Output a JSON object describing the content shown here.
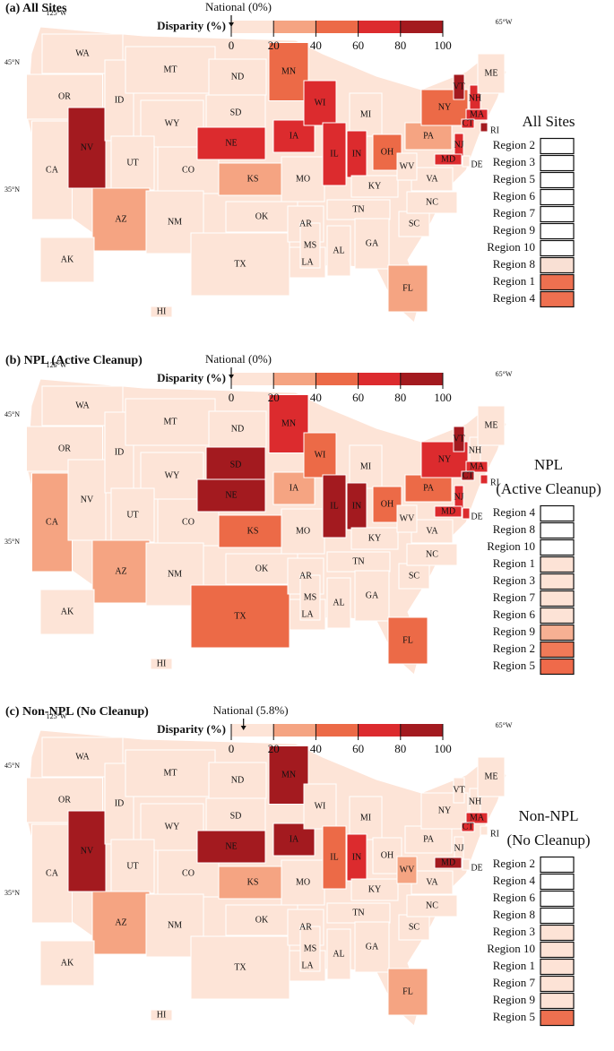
{
  "panels": [
    {
      "title": "(a) All Sites",
      "national": {
        "label": "National (0%)",
        "value": 0
      },
      "colorbar": {
        "title": "Disparity (%)",
        "range": [
          0,
          100
        ],
        "ticks": [
          0,
          20,
          40,
          60,
          80,
          100
        ],
        "colors": [
          "#fde4d7",
          "#f5a482",
          "#ec6a47",
          "#dc2b2e",
          "#a31a1f"
        ]
      },
      "graticule": [
        "125°W",
        "65°W",
        "45°N",
        "35°N"
      ],
      "legend_title": [
        "All Sites"
      ],
      "legend": [
        {
          "label": "Region 2",
          "color": "#ffffff"
        },
        {
          "label": "Region 3",
          "color": "#ffffff"
        },
        {
          "label": "Region 5",
          "color": "#ffffff"
        },
        {
          "label": "Region 6",
          "color": "#ffffff"
        },
        {
          "label": "Region 7",
          "color": "#ffffff"
        },
        {
          "label": "Region 9",
          "color": "#ffffff"
        },
        {
          "label": "Region 10",
          "color": "#ffffff"
        },
        {
          "label": "Region 8",
          "color": "#f9e0d4"
        },
        {
          "label": "Region 1",
          "color": "#ee7050"
        },
        {
          "label": "Region 4",
          "color": "#ee7050"
        }
      ],
      "states": [
        {
          "label": "WA",
          "color": "#fde4d7"
        },
        {
          "label": "OR",
          "color": "#fde4d7"
        },
        {
          "label": "CA",
          "color": "#fde4d7"
        },
        {
          "label": "NV",
          "color": "#a31a1f"
        },
        {
          "label": "ID",
          "color": "#fde4d7"
        },
        {
          "label": "MT",
          "color": "#fde4d7"
        },
        {
          "label": "WY",
          "color": "#fde4d7"
        },
        {
          "label": "UT",
          "color": "#fde4d7"
        },
        {
          "label": "CO",
          "color": "#fde4d7"
        },
        {
          "label": "AZ",
          "color": "#f5a482"
        },
        {
          "label": "NM",
          "color": "#fde4d7"
        },
        {
          "label": "ND",
          "color": "#fde4d7"
        },
        {
          "label": "SD",
          "color": "#fde4d7"
        },
        {
          "label": "NE",
          "color": "#dc2b2e"
        },
        {
          "label": "KS",
          "color": "#f5a482"
        },
        {
          "label": "OK",
          "color": "#fde4d7"
        },
        {
          "label": "TX",
          "color": "#fde4d7"
        },
        {
          "label": "MN",
          "color": "#ec6a47"
        },
        {
          "label": "IA",
          "color": "#dc2b2e"
        },
        {
          "label": "MO",
          "color": "#fde4d7"
        },
        {
          "label": "AR",
          "color": "#fde4d7"
        },
        {
          "label": "LA",
          "color": "#fde4d7"
        },
        {
          "label": "WI",
          "color": "#dc2b2e"
        },
        {
          "label": "IL",
          "color": "#dc2b2e"
        },
        {
          "label": "MI",
          "color": "#fde4d7"
        },
        {
          "label": "IN",
          "color": "#dc2b2e"
        },
        {
          "label": "OH",
          "color": "#ec6a47"
        },
        {
          "label": "KY",
          "color": "#fde4d7"
        },
        {
          "label": "TN",
          "color": "#fde4d7"
        },
        {
          "label": "MS",
          "color": "#fde4d7"
        },
        {
          "label": "AL",
          "color": "#fde4d7"
        },
        {
          "label": "GA",
          "color": "#fde4d7"
        },
        {
          "label": "FL",
          "color": "#f5a482"
        },
        {
          "label": "SC",
          "color": "#fde4d7"
        },
        {
          "label": "NC",
          "color": "#fde4d7"
        },
        {
          "label": "VA",
          "color": "#fde4d7"
        },
        {
          "label": "WV",
          "color": "#fde4d7"
        },
        {
          "label": "PA",
          "color": "#f5a482"
        },
        {
          "label": "NY",
          "color": "#ec6a47"
        },
        {
          "label": "VT",
          "color": "#a31a1f"
        },
        {
          "label": "NH",
          "color": "#dc2b2e"
        },
        {
          "label": "ME",
          "color": "#fde4d7"
        },
        {
          "label": "MA",
          "color": "#dc2b2e"
        },
        {
          "label": "CT",
          "color": "#dc2b2e"
        },
        {
          "label": "RI",
          "color": "#a31a1f"
        },
        {
          "label": "NJ",
          "color": "#dc2b2e"
        },
        {
          "label": "DE",
          "color": "#fde4d7"
        },
        {
          "label": "MD",
          "color": "#dc2b2e"
        },
        {
          "label": "AK",
          "color": "#fde4d7"
        },
        {
          "label": "HI",
          "color": "#fde4d7"
        }
      ]
    },
    {
      "title": "(b) NPL (Active Cleanup)",
      "national": {
        "label": "National (0%)",
        "value": 0
      },
      "colorbar": {
        "title": "Disparity (%)",
        "range": [
          0,
          100
        ],
        "ticks": [
          0,
          20,
          40,
          60,
          80,
          100
        ],
        "colors": [
          "#fde4d7",
          "#f5a482",
          "#ec6a47",
          "#dc2b2e",
          "#a31a1f"
        ]
      },
      "graticule": [
        "125°W",
        "65°W",
        "45°N",
        "35°N"
      ],
      "legend_title": [
        "NPL",
        "(Active Cleanup)"
      ],
      "legend": [
        {
          "label": "Region 4",
          "color": "#ffffff"
        },
        {
          "label": "Region 8",
          "color": "#ffffff"
        },
        {
          "label": "Region 10",
          "color": "#ffffff"
        },
        {
          "label": "Region 1",
          "color": "#fde3d6"
        },
        {
          "label": "Region 3",
          "color": "#fde3d6"
        },
        {
          "label": "Region 7",
          "color": "#fde3d6"
        },
        {
          "label": "Region 6",
          "color": "#fde3d6"
        },
        {
          "label": "Region 9",
          "color": "#f6b093"
        },
        {
          "label": "Region 2",
          "color": "#f07a58"
        },
        {
          "label": "Region 5",
          "color": "#ef6a4a"
        }
      ],
      "states": [
        {
          "label": "WA",
          "color": "#fde4d7"
        },
        {
          "label": "OR",
          "color": "#fde4d7"
        },
        {
          "label": "CA",
          "color": "#f5a482"
        },
        {
          "label": "NV",
          "color": "#fde4d7"
        },
        {
          "label": "ID",
          "color": "#fde4d7"
        },
        {
          "label": "MT",
          "color": "#fde4d7"
        },
        {
          "label": "WY",
          "color": "#fde4d7"
        },
        {
          "label": "UT",
          "color": "#fde4d7"
        },
        {
          "label": "CO",
          "color": "#fde4d7"
        },
        {
          "label": "AZ",
          "color": "#f5a482"
        },
        {
          "label": "NM",
          "color": "#fde4d7"
        },
        {
          "label": "ND",
          "color": "#fde4d7"
        },
        {
          "label": "SD",
          "color": "#a31a1f"
        },
        {
          "label": "NE",
          "color": "#a31a1f"
        },
        {
          "label": "KS",
          "color": "#ec6a47"
        },
        {
          "label": "OK",
          "color": "#fde4d7"
        },
        {
          "label": "TX",
          "color": "#ec6a47"
        },
        {
          "label": "MN",
          "color": "#dc2b2e"
        },
        {
          "label": "IA",
          "color": "#f5a482"
        },
        {
          "label": "MO",
          "color": "#fde4d7"
        },
        {
          "label": "AR",
          "color": "#fde4d7"
        },
        {
          "label": "LA",
          "color": "#fde4d7"
        },
        {
          "label": "WI",
          "color": "#ec6a47"
        },
        {
          "label": "IL",
          "color": "#a31a1f"
        },
        {
          "label": "MI",
          "color": "#fde4d7"
        },
        {
          "label": "IN",
          "color": "#a31a1f"
        },
        {
          "label": "OH",
          "color": "#ec6a47"
        },
        {
          "label": "KY",
          "color": "#fde4d7"
        },
        {
          "label": "TN",
          "color": "#fde4d7"
        },
        {
          "label": "MS",
          "color": "#fde4d7"
        },
        {
          "label": "AL",
          "color": "#fde4d7"
        },
        {
          "label": "GA",
          "color": "#fde4d7"
        },
        {
          "label": "FL",
          "color": "#ec6a47"
        },
        {
          "label": "SC",
          "color": "#fde4d7"
        },
        {
          "label": "NC",
          "color": "#fde4d7"
        },
        {
          "label": "VA",
          "color": "#fde4d7"
        },
        {
          "label": "WV",
          "color": "#fde4d7"
        },
        {
          "label": "PA",
          "color": "#ec6a47"
        },
        {
          "label": "NY",
          "color": "#dc2b2e"
        },
        {
          "label": "VT",
          "color": "#a31a1f"
        },
        {
          "label": "NH",
          "color": "#fde4d7"
        },
        {
          "label": "ME",
          "color": "#fde4d7"
        },
        {
          "label": "MA",
          "color": "#dc2b2e"
        },
        {
          "label": "CT",
          "color": "#a31a1f"
        },
        {
          "label": "RI",
          "color": "#dc2b2e"
        },
        {
          "label": "NJ",
          "color": "#dc2b2e"
        },
        {
          "label": "DE",
          "color": "#dc2b2e"
        },
        {
          "label": "MD",
          "color": "#dc2b2e"
        },
        {
          "label": "AK",
          "color": "#fde4d7"
        },
        {
          "label": "HI",
          "color": "#fde4d7"
        }
      ]
    },
    {
      "title": "(c) Non-NPL (No Cleanup)",
      "national": {
        "label": "National (5.8%)",
        "value": 5.8
      },
      "colorbar": {
        "title": "Disparity (%)",
        "range": [
          0,
          100
        ],
        "ticks": [
          0,
          20,
          40,
          60,
          80,
          100
        ],
        "colors": [
          "#fde4d7",
          "#f5a482",
          "#ec6a47",
          "#dc2b2e",
          "#a31a1f"
        ]
      },
      "graticule": [
        "125°W",
        "65°W",
        "45°N",
        "35°N"
      ],
      "legend_title": [
        "Non-NPL",
        "(No Cleanup)"
      ],
      "legend": [
        {
          "label": "Region 2",
          "color": "#ffffff"
        },
        {
          "label": "Region 4",
          "color": "#ffffff"
        },
        {
          "label": "Region 6",
          "color": "#ffffff"
        },
        {
          "label": "Region 8",
          "color": "#ffffff"
        },
        {
          "label": "Region 3",
          "color": "#fde3d6"
        },
        {
          "label": "Region 10",
          "color": "#fde3d6"
        },
        {
          "label": "Region 1",
          "color": "#fde3d6"
        },
        {
          "label": "Region 7",
          "color": "#fde3d6"
        },
        {
          "label": "Region 9",
          "color": "#fde3d6"
        },
        {
          "label": "Region 5",
          "color": "#ee7050"
        }
      ],
      "states": [
        {
          "label": "WA",
          "color": "#fde4d7"
        },
        {
          "label": "OR",
          "color": "#fde4d7"
        },
        {
          "label": "CA",
          "color": "#fde4d7"
        },
        {
          "label": "NV",
          "color": "#a31a1f"
        },
        {
          "label": "ID",
          "color": "#fde4d7"
        },
        {
          "label": "MT",
          "color": "#fde4d7"
        },
        {
          "label": "WY",
          "color": "#fde4d7"
        },
        {
          "label": "UT",
          "color": "#fde4d7"
        },
        {
          "label": "CO",
          "color": "#fde4d7"
        },
        {
          "label": "AZ",
          "color": "#f5a482"
        },
        {
          "label": "NM",
          "color": "#fde4d7"
        },
        {
          "label": "ND",
          "color": "#fde4d7"
        },
        {
          "label": "SD",
          "color": "#fde4d7"
        },
        {
          "label": "NE",
          "color": "#a31a1f"
        },
        {
          "label": "KS",
          "color": "#f5a482"
        },
        {
          "label": "OK",
          "color": "#fde4d7"
        },
        {
          "label": "TX",
          "color": "#fde4d7"
        },
        {
          "label": "MN",
          "color": "#a31a1f"
        },
        {
          "label": "IA",
          "color": "#a31a1f"
        },
        {
          "label": "MO",
          "color": "#fde4d7"
        },
        {
          "label": "AR",
          "color": "#fde4d7"
        },
        {
          "label": "LA",
          "color": "#fde4d7"
        },
        {
          "label": "WI",
          "color": "#fde4d7"
        },
        {
          "label": "IL",
          "color": "#ec6a47"
        },
        {
          "label": "MI",
          "color": "#fde4d7"
        },
        {
          "label": "IN",
          "color": "#dc2b2e"
        },
        {
          "label": "OH",
          "color": "#fde4d7"
        },
        {
          "label": "KY",
          "color": "#fde4d7"
        },
        {
          "label": "TN",
          "color": "#fde4d7"
        },
        {
          "label": "MS",
          "color": "#fde4d7"
        },
        {
          "label": "AL",
          "color": "#fde4d7"
        },
        {
          "label": "GA",
          "color": "#fde4d7"
        },
        {
          "label": "FL",
          "color": "#f5a482"
        },
        {
          "label": "SC",
          "color": "#fde4d7"
        },
        {
          "label": "NC",
          "color": "#fde4d7"
        },
        {
          "label": "VA",
          "color": "#fde4d7"
        },
        {
          "label": "WV",
          "color": "#f5a482"
        },
        {
          "label": "PA",
          "color": "#fde4d7"
        },
        {
          "label": "NY",
          "color": "#fde4d7"
        },
        {
          "label": "VT",
          "color": "#fde4d7"
        },
        {
          "label": "NH",
          "color": "#fde4d7"
        },
        {
          "label": "ME",
          "color": "#fde4d7"
        },
        {
          "label": "MA",
          "color": "#dc2b2e"
        },
        {
          "label": "CT",
          "color": "#dc2b2e"
        },
        {
          "label": "RI",
          "color": "#fde4d7"
        },
        {
          "label": "NJ",
          "color": "#fde4d7"
        },
        {
          "label": "DE",
          "color": "#fde4d7"
        },
        {
          "label": "MD",
          "color": "#a31a1f"
        },
        {
          "label": "AK",
          "color": "#fde4d7"
        },
        {
          "label": "HI",
          "color": "#fde4d7"
        }
      ]
    }
  ]
}
